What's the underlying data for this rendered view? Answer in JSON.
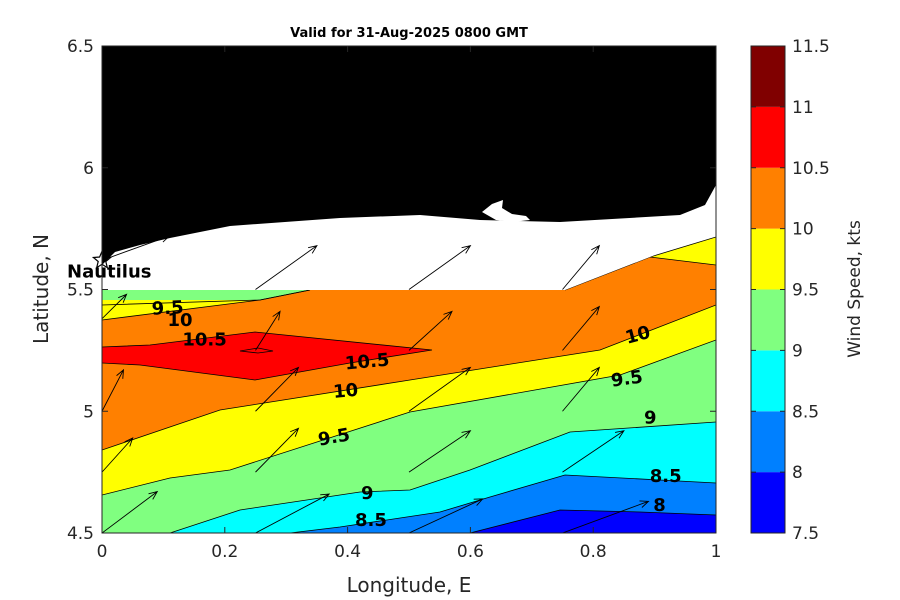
{
  "chart_data": {
    "type": "heatmap",
    "subtype": "filled-contour-with-wind-vectors",
    "title": "Valid for 31-Aug-2025 0800 GMT",
    "xlabel": "Longitude, E",
    "ylabel": "Latitude, N",
    "xlim": [
      0,
      1
    ],
    "ylim": [
      4.5,
      6.5
    ],
    "xticks": [
      "0",
      "0.2",
      "0.4",
      "0.6",
      "0.8",
      "1"
    ],
    "xtick_values": [
      0,
      0.2,
      0.4,
      0.6,
      0.8,
      1
    ],
    "yticks": [
      "4.5",
      "5",
      "5.5",
      "6",
      "6.5"
    ],
    "ytick_values": [
      4.5,
      5,
      5.5,
      6,
      6.5
    ],
    "colorbar": {
      "label": "Wind Speed, kts",
      "ticks": [
        "7.5",
        "8",
        "8.5",
        "9",
        "9.5",
        "10",
        "10.5",
        "11",
        "11.5"
      ],
      "levels": [
        7.5,
        8,
        8.5,
        9,
        9.5,
        10,
        10.5,
        11,
        11.5
      ],
      "colors": [
        "#0000ff",
        "#0080ff",
        "#00ffff",
        "#80ff80",
        "#ffff00",
        "#ff8000",
        "#ff0000",
        "#800000"
      ]
    },
    "colors": {
      "land": "#000000",
      "nodata": "#ffffff",
      "contour_line": "#000000"
    },
    "contour_labels": [
      {
        "text": "9.5",
        "x": 0.107,
        "y": 5.42,
        "angle": -3
      },
      {
        "text": "10",
        "x": 0.127,
        "y": 5.37,
        "angle": 0
      },
      {
        "text": "10.5",
        "x": 0.167,
        "y": 5.29,
        "angle": 0
      },
      {
        "text": "10.5",
        "x": 0.432,
        "y": 5.2,
        "angle": -5
      },
      {
        "text": "10",
        "x": 0.397,
        "y": 5.08,
        "angle": -5
      },
      {
        "text": "9.5",
        "x": 0.378,
        "y": 4.89,
        "angle": -10
      },
      {
        "text": "9",
        "x": 0.432,
        "y": 4.66,
        "angle": 0
      },
      {
        "text": "8.5",
        "x": 0.438,
        "y": 4.55,
        "angle": 0
      },
      {
        "text": "10",
        "x": 0.873,
        "y": 5.31,
        "angle": -15
      },
      {
        "text": "9.5",
        "x": 0.855,
        "y": 5.13,
        "angle": -8
      },
      {
        "text": "9",
        "x": 0.893,
        "y": 4.97,
        "angle": 0
      },
      {
        "text": "8.5",
        "x": 0.918,
        "y": 4.73,
        "angle": 0
      },
      {
        "text": "8",
        "x": 0.908,
        "y": 4.61,
        "angle": 0
      }
    ],
    "marker": {
      "label": "Nautilus",
      "x": 0.0,
      "y": 5.62,
      "symbol": "star"
    },
    "wind_vectors": [
      {
        "x": 0.0,
        "y": 5.62,
        "u": 0.11,
        "v": 0.1
      },
      {
        "x": 0.0,
        "y": 5.38,
        "u": 0.04,
        "v": 0.1
      },
      {
        "x": 0.0,
        "y": 5.0,
        "u": 0.035,
        "v": 0.17
      },
      {
        "x": 0.0,
        "y": 4.75,
        "u": 0.05,
        "v": 0.14
      },
      {
        "x": 0.0,
        "y": 4.5,
        "u": 0.09,
        "v": 0.17
      },
      {
        "x": 0.25,
        "y": 5.5,
        "u": 0.1,
        "v": 0.18
      },
      {
        "x": 0.25,
        "y": 5.0,
        "u": 0.07,
        "v": 0.18
      },
      {
        "x": 0.25,
        "y": 4.75,
        "u": 0.07,
        "v": 0.18
      },
      {
        "x": 0.25,
        "y": 4.5,
        "u": 0.12,
        "v": 0.16
      },
      {
        "x": 0.25,
        "y": 5.25,
        "u": 0.04,
        "v": 0.16
      },
      {
        "x": 0.5,
        "y": 5.5,
        "u": 0.1,
        "v": 0.18
      },
      {
        "x": 0.5,
        "y": 5.0,
        "u": 0.1,
        "v": 0.18
      },
      {
        "x": 0.5,
        "y": 4.75,
        "u": 0.1,
        "v": 0.17
      },
      {
        "x": 0.5,
        "y": 4.5,
        "u": 0.12,
        "v": 0.14
      },
      {
        "x": 0.5,
        "y": 5.25,
        "u": 0.07,
        "v": 0.16
      },
      {
        "x": 0.75,
        "y": 5.5,
        "u": 0.06,
        "v": 0.18
      },
      {
        "x": 0.75,
        "y": 5.25,
        "u": 0.06,
        "v": 0.18
      },
      {
        "x": 0.75,
        "y": 5.0,
        "u": 0.06,
        "v": 0.18
      },
      {
        "x": 0.75,
        "y": 4.75,
        "u": 0.1,
        "v": 0.17
      },
      {
        "x": 0.75,
        "y": 4.5,
        "u": 0.14,
        "v": 0.13
      }
    ]
  }
}
